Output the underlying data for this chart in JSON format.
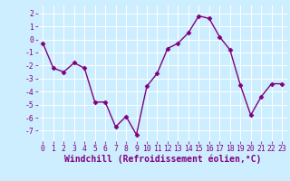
{
  "x": [
    0,
    1,
    2,
    3,
    4,
    5,
    6,
    7,
    8,
    9,
    10,
    11,
    12,
    13,
    14,
    15,
    16,
    17,
    18,
    19,
    20,
    21,
    22,
    23
  ],
  "y": [
    -0.3,
    -2.2,
    -2.5,
    -1.8,
    -2.2,
    -4.8,
    -4.8,
    -6.7,
    -5.9,
    -7.3,
    -3.6,
    -2.6,
    -0.7,
    -0.3,
    0.5,
    1.8,
    1.6,
    0.2,
    -0.8,
    -3.5,
    -5.8,
    -4.4,
    -3.4,
    -3.4
  ],
  "line_color": "#800080",
  "marker": "D",
  "marker_size": 2.5,
  "bg_color": "#cceeff",
  "grid_color": "#ffffff",
  "xlabel": "Windchill (Refroidissement éolien,°C)",
  "ylim": [
    -7.8,
    2.6
  ],
  "xlim": [
    -0.5,
    23.5
  ],
  "yticks": [
    2,
    1,
    0,
    -1,
    -2,
    -3,
    -4,
    -5,
    -6,
    -7
  ],
  "xticks": [
    0,
    1,
    2,
    3,
    4,
    5,
    6,
    7,
    8,
    9,
    10,
    11,
    12,
    13,
    14,
    15,
    16,
    17,
    18,
    19,
    20,
    21,
    22,
    23
  ],
  "tick_color": "#800080",
  "tick_fontsize": 5.8,
  "xlabel_fontsize": 7.0,
  "line_width": 1.0
}
